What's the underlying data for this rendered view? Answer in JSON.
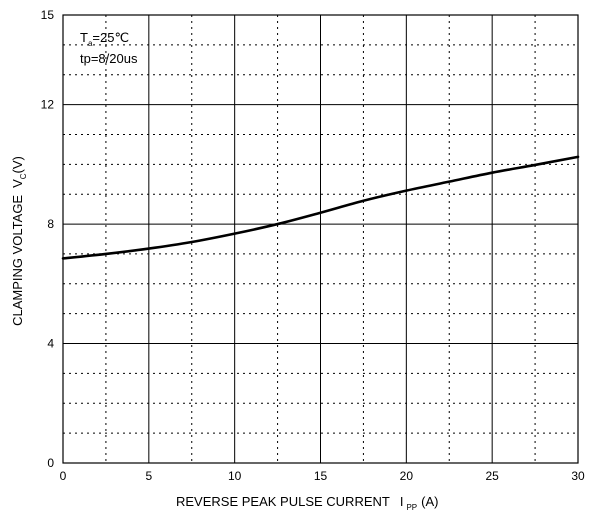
{
  "chart_data": {
    "type": "line",
    "xlim": [
      0,
      30
    ],
    "ylim": [
      0,
      15
    ],
    "x_ticks": [
      0,
      5,
      10,
      15,
      20,
      25,
      30
    ],
    "y_ticks": [
      0,
      4,
      8,
      12,
      15
    ],
    "x_tick_labels": [
      "0",
      "5",
      "10",
      "15",
      "20",
      "25",
      "30"
    ],
    "y_tick_labels": [
      "0",
      "4",
      "8",
      "12",
      "15"
    ],
    "x_minor_step": 2.5,
    "y_minor_step": 1,
    "grid": true,
    "xlabel_main": "REVERSE PEAK PULSE CURRENT",
    "xlabel_symbol": "I",
    "xlabel_sub": "PP",
    "xlabel_unit": "(A)",
    "ylabel_main": "CLAMPING VOLTAGE",
    "ylabel_symbol": "V",
    "ylabel_sub": "C",
    "ylabel_unit": "(V)",
    "annotation": {
      "line1_symbol": "T",
      "line1_sub": "a",
      "line1_rest": "=25℃",
      "line2": "tp=8/20us"
    },
    "series": [
      {
        "x": [
          0,
          2.5,
          5,
          7.5,
          10,
          12.5,
          15,
          17.5,
          20,
          22.5,
          25,
          27.5,
          30
        ],
        "y": [
          6.85,
          7.0,
          7.18,
          7.4,
          7.68,
          8.0,
          8.38,
          8.78,
          9.12,
          9.42,
          9.72,
          9.98,
          10.25
        ]
      }
    ]
  }
}
